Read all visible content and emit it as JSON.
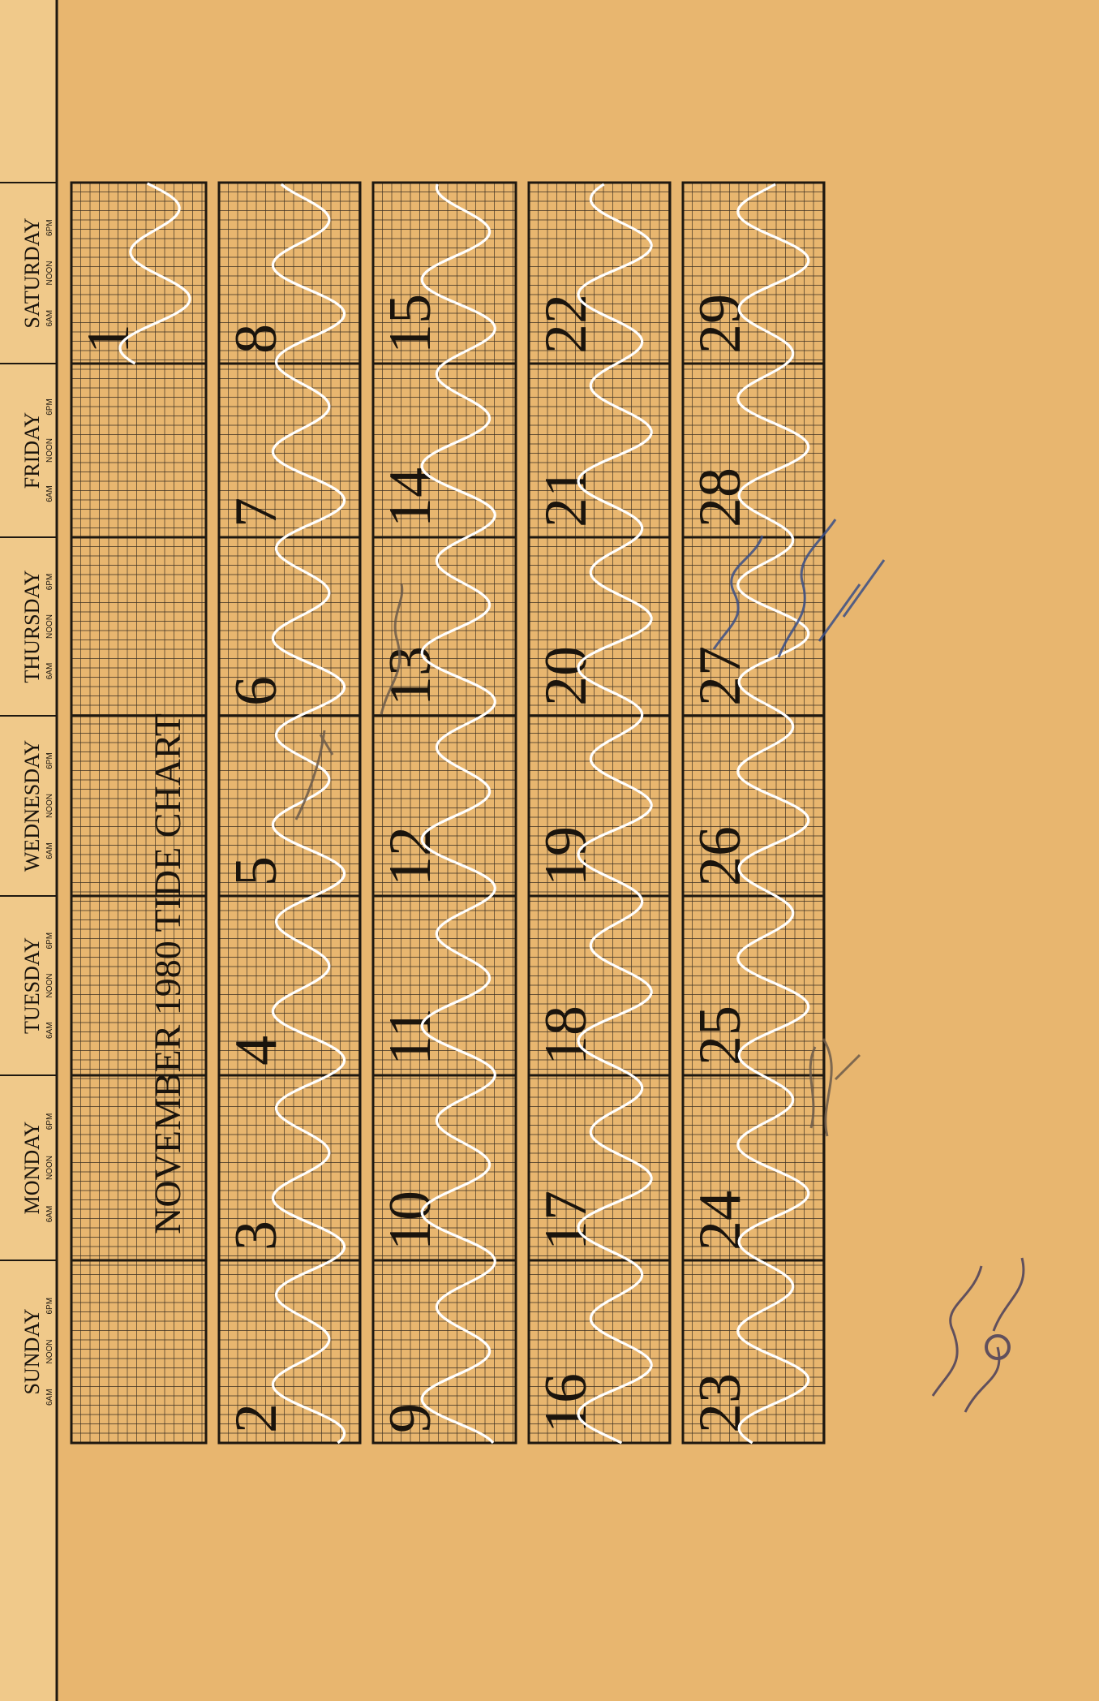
{
  "chart_data": {
    "type": "line",
    "title": "NOVEMBER 1980 TIDE CHART",
    "days_of_week": [
      "SUNDAY",
      "MONDAY",
      "TUESDAY",
      "WEDNESDAY",
      "THURSDAY",
      "FRIDAY",
      "SATURDAY"
    ],
    "time_ticks": [
      "6AM",
      "NOON",
      "6PM"
    ],
    "weeks": [
      [
        null,
        null,
        null,
        null,
        null,
        null,
        1
      ],
      [
        2,
        3,
        4,
        5,
        6,
        7,
        8
      ],
      [
        9,
        10,
        11,
        12,
        13,
        14,
        15
      ],
      [
        16,
        17,
        18,
        19,
        20,
        21,
        22
      ],
      [
        23,
        24,
        25,
        26,
        27,
        28,
        29
      ]
    ],
    "series": [
      {
        "color": "#ffffff",
        "tide_cycles_per_day": 1.93,
        "first_visible_day": 1
      }
    ],
    "grid": true
  },
  "colors": {
    "paper": "#e8b66f",
    "header_band": "#f0c98a",
    "grid_minor": "#3a2f22",
    "grid_major": "#1e1810",
    "tide_line": "#ffffff",
    "ink_blue": "#3a4f86",
    "ink_pencil": "#6b5a4a"
  }
}
